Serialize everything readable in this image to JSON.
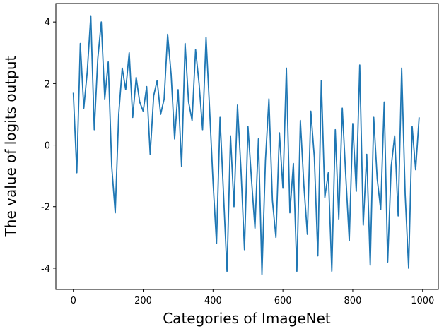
{
  "chart_data": {
    "type": "line",
    "xlabel": "Categories of ImageNet",
    "ylabel": "The value of logits output",
    "x": [
      0,
      10,
      20,
      30,
      40,
      50,
      60,
      70,
      80,
      90,
      100,
      110,
      120,
      130,
      140,
      150,
      160,
      170,
      180,
      190,
      200,
      210,
      220,
      230,
      240,
      250,
      260,
      270,
      280,
      290,
      300,
      310,
      320,
      330,
      340,
      350,
      360,
      370,
      380,
      390,
      400,
      410,
      420,
      430,
      440,
      450,
      460,
      470,
      480,
      490,
      500,
      510,
      520,
      530,
      540,
      550,
      560,
      570,
      580,
      590,
      600,
      610,
      620,
      630,
      640,
      650,
      660,
      670,
      680,
      690,
      700,
      710,
      720,
      730,
      740,
      750,
      760,
      770,
      780,
      790,
      800,
      810,
      820,
      830,
      840,
      850,
      860,
      870,
      880,
      890,
      900,
      910,
      920,
      930,
      940,
      950,
      960,
      970,
      980,
      990
    ],
    "series": [
      {
        "color": "#1f77b4",
        "values": [
          1.7,
          -0.9,
          3.3,
          1.2,
          2.4,
          4.2,
          0.5,
          2.8,
          4.0,
          1.5,
          2.7,
          -0.7,
          -2.2,
          1.0,
          2.5,
          1.8,
          3.0,
          0.9,
          2.2,
          1.4,
          1.1,
          1.9,
          -0.3,
          1.6,
          2.1,
          1.0,
          1.5,
          3.6,
          2.3,
          0.2,
          1.8,
          -0.7,
          3.3,
          1.4,
          0.8,
          3.1,
          2.0,
          0.5,
          3.5,
          1.2,
          -1.2,
          -3.2,
          0.9,
          -1.6,
          -4.1,
          0.3,
          -2.0,
          1.3,
          -0.8,
          -3.4,
          0.6,
          -1.1,
          -2.7,
          0.2,
          -4.2,
          -0.5,
          1.5,
          -1.8,
          -3.0,
          0.4,
          -1.4,
          2.5,
          -2.2,
          -0.6,
          -4.1,
          0.8,
          -1.3,
          -2.9,
          1.1,
          -0.4,
          -3.6,
          2.1,
          -1.7,
          -0.9,
          -4.1,
          0.5,
          -2.4,
          1.2,
          -1.0,
          -3.1,
          0.7,
          -1.5,
          2.6,
          -2.6,
          -0.3,
          -3.9,
          0.9,
          -1.1,
          -2.1,
          1.4,
          -3.8,
          -0.7,
          0.3,
          -2.3,
          2.5,
          -1.6,
          -4.0,
          0.6,
          -0.8,
          0.9
        ]
      }
    ],
    "xlim": [
      -50,
      1045
    ],
    "ylim": [
      -4.69,
      4.6
    ],
    "xticks": [
      0,
      200,
      400,
      600,
      800,
      1000
    ],
    "yticks": [
      -4,
      -2,
      0,
      2,
      4
    ],
    "grid": false
  }
}
